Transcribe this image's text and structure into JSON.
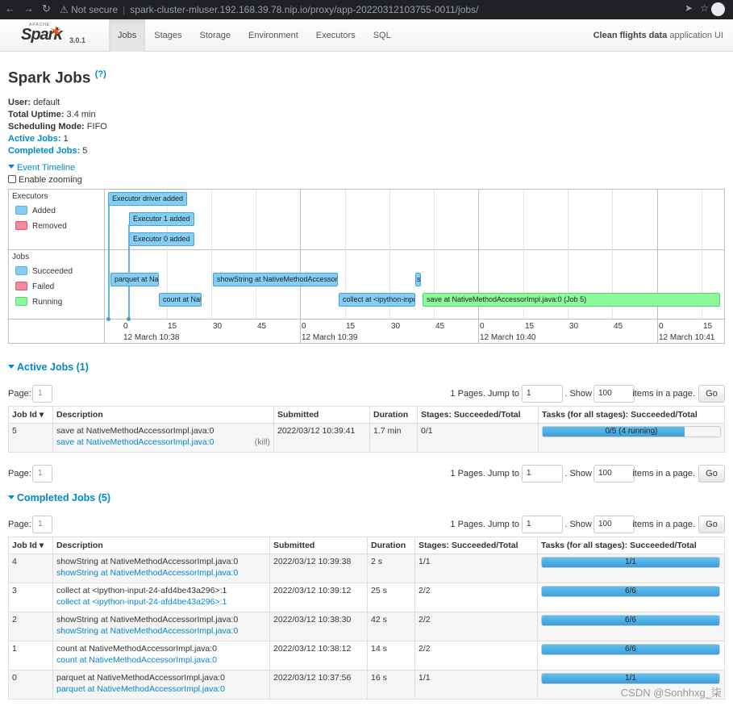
{
  "browser": {
    "security": "Not secure",
    "url": "spark-cluster-mluser.192.168.39.78.nip.io/proxy/app-20220312103755-0011/jobs/"
  },
  "navbar": {
    "logo_apache": "APACHE",
    "logo_word": "Spark",
    "version": "3.0.1",
    "tabs": [
      {
        "label": "Jobs",
        "active": true
      },
      {
        "label": "Stages",
        "active": false
      },
      {
        "label": "Storage",
        "active": false
      },
      {
        "label": "Environment",
        "active": false
      },
      {
        "label": "Executors",
        "active": false
      },
      {
        "label": "SQL",
        "active": false
      }
    ],
    "app_name": "Clean flights data",
    "app_suffix": "application UI"
  },
  "page": {
    "title": "Spark Jobs",
    "help": "(?)"
  },
  "summary": {
    "user_label": "User:",
    "user": "default",
    "uptime_label": "Total Uptime:",
    "uptime": "3.4 min",
    "mode_label": "Scheduling Mode:",
    "mode": "FIFO",
    "active_label": "Active Jobs:",
    "active": "1",
    "completed_label": "Completed Jobs:",
    "completed": "5"
  },
  "event_timeline": {
    "toggle": "Event Timeline",
    "zoom": "Enable zooming",
    "executors_label": "Executors",
    "executors_legend": [
      "Added",
      "Removed"
    ],
    "jobs_label": "Jobs",
    "jobs_legend": [
      "Succeeded",
      "Failed",
      "Running"
    ],
    "executor_events": [
      "Executor driver added",
      "Executor 1 added",
      "Executor 0 added"
    ],
    "job_bars": [
      "parquet at Na",
      "count at Nat",
      "showString at NativeMethodAccessorI",
      "collect at <ipython-inpu",
      "s",
      "save at NativeMethodAccessorImpl.java:0 (Job 5)"
    ],
    "ticks": [
      "0",
      "15",
      "30",
      "45",
      "0",
      "15",
      "30",
      "45",
      "0",
      "15",
      "30",
      "45",
      "0",
      "15"
    ],
    "dates": [
      "12 March 10:38",
      "12 March 10:39",
      "12 March 10:40",
      "12 March 10:41"
    ]
  },
  "pager": {
    "page_label": "Page:",
    "page_value": "1",
    "pages_text": "1 Pages. Jump to",
    "jump_value": "1",
    "show_text": ". Show",
    "show_value": "100",
    "items_text": "items in a page.",
    "go": "Go"
  },
  "active_jobs": {
    "heading": "Active Jobs (1)",
    "columns": [
      "Job Id ▾",
      "Description",
      "Submitted",
      "Duration",
      "Stages: Succeeded/Total",
      "Tasks (for all stages): Succeeded/Total"
    ],
    "rows": [
      {
        "id": "5",
        "desc": "save at NativeMethodAccessorImpl.java:0",
        "desc_link": "save at NativeMethodAccessorImpl.java:0",
        "kill": "(kill)",
        "submitted": "2022/03/12 10:39:41",
        "duration": "1.7 min",
        "stages": "0/1",
        "tasks": "0/5 (4 running)",
        "progress": 0.8
      }
    ]
  },
  "completed_jobs": {
    "heading": "Completed Jobs (5)",
    "columns": [
      "Job Id ▾",
      "Description",
      "Submitted",
      "Duration",
      "Stages: Succeeded/Total",
      "Tasks (for all stages): Succeeded/Total"
    ],
    "rows": [
      {
        "id": "4",
        "desc": "showString at NativeMethodAccessorImpl.java:0",
        "desc_link": "showString at NativeMethodAccessorImpl.java:0",
        "submitted": "2022/03/12 10:39:38",
        "duration": "2 s",
        "stages": "1/1",
        "tasks": "1/1",
        "progress": 1
      },
      {
        "id": "3",
        "desc": "collect at <ipython-input-24-afd4be43a296>:1",
        "desc_link": "collect at <ipython-input-24-afd4be43a296>:1",
        "submitted": "2022/03/12 10:39:12",
        "duration": "25 s",
        "stages": "2/2",
        "tasks": "6/6",
        "progress": 1
      },
      {
        "id": "2",
        "desc": "showString at NativeMethodAccessorImpl.java:0",
        "desc_link": "showString at NativeMethodAccessorImpl.java:0",
        "submitted": "2022/03/12 10:38:30",
        "duration": "42 s",
        "stages": "2/2",
        "tasks": "6/6",
        "progress": 1
      },
      {
        "id": "1",
        "desc": "count at NativeMethodAccessorImpl.java:0",
        "desc_link": "count at NativeMethodAccessorImpl.java:0",
        "submitted": "2022/03/12 10:38:12",
        "duration": "14 s",
        "stages": "2/2",
        "tasks": "6/6",
        "progress": 1
      },
      {
        "id": "0",
        "desc": "parquet at NativeMethodAccessorImpl.java:0",
        "desc_link": "parquet at NativeMethodAccessorImpl.java:0",
        "submitted": "2022/03/12 10:37:56",
        "duration": "16 s",
        "stages": "1/1",
        "tasks": "1/1",
        "progress": 1
      }
    ]
  },
  "watermark": "CSDN @Sonhhxg_柒"
}
